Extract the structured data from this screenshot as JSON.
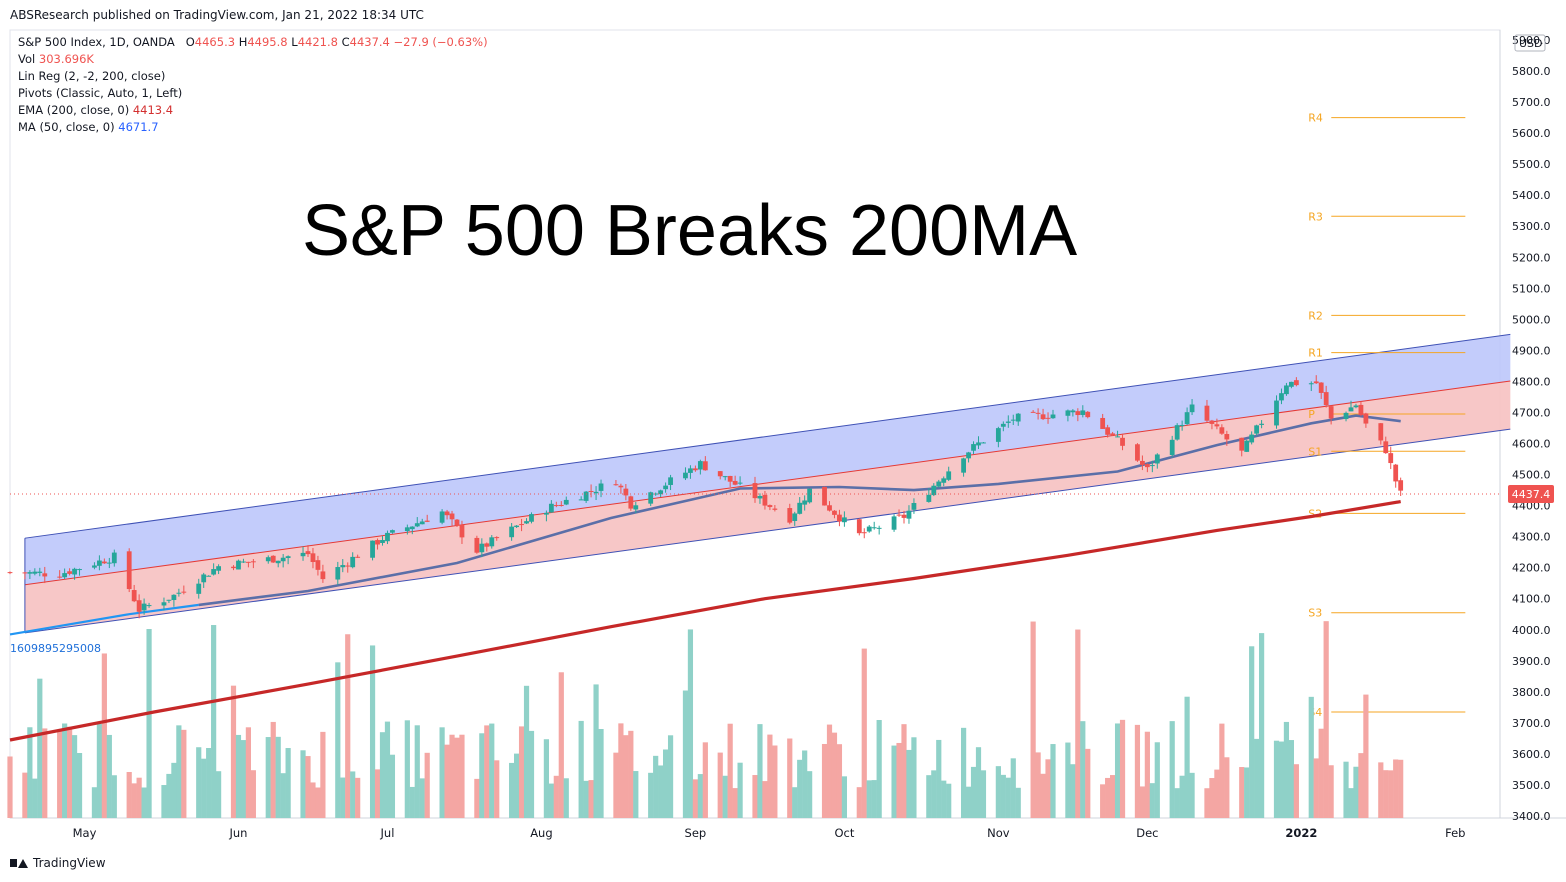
{
  "header": {
    "published": "ABSResearch published on TradingView.com, Jan 21, 2022 18:34 UTC"
  },
  "legend": {
    "symbol": "S&P 500 Index, 1D, OANDA",
    "ohlc": {
      "o_label": "O",
      "o": "4465.3",
      "h_label": "H",
      "h": "4495.8",
      "l_label": "L",
      "l": "4421.8",
      "c_label": "C",
      "c": "4437.4",
      "chg": "−27.9 (−0.63%)"
    },
    "vol_label": "Vol",
    "vol": "303.696K",
    "linreg": "Lin Reg (2, -2, 200, close)",
    "pivots": "Pivots (Classic, Auto, 1, Left)",
    "ema_label": "EMA (200, close, 0)",
    "ema": "4413.4",
    "ma_label": "MA (50, close, 0)",
    "ma": "4671.7"
  },
  "overlay_title": "S&P 500 Breaks 200MA",
  "left_edge_value": "1609895295008",
  "footer": {
    "brand": "TradingView"
  },
  "colors": {
    "up": "#26a69a",
    "down": "#ef5350",
    "vol_up": "#8fd1c8",
    "vol_down": "#f4a6a3",
    "ema": "#c62828",
    "ma": "#5b6fa8",
    "ma_early": "#2196f3",
    "channel_upper_fill": "#bcc6fb",
    "channel_lower_fill": "#f7c4c4",
    "pivot": "#f5a623",
    "price_badge": "#ef5350"
  },
  "chart_data": {
    "type": "candlestick",
    "currency": "USD",
    "y_ticks": [
      "3400.0",
      "3500.0",
      "3600.0",
      "3700.0",
      "3800.0",
      "3900.0",
      "4000.0",
      "4100.0",
      "4200.0",
      "4300.0",
      "4400.0",
      "4500.0",
      "4600.0",
      "4700.0",
      "4800.0",
      "4900.0",
      "5000.0",
      "5100.0",
      "5200.0",
      "5300.0",
      "5400.0",
      "5500.0",
      "5600.0",
      "5700.0",
      "5800.0",
      "5900.0"
    ],
    "ylim": [
      3400,
      5900
    ],
    "x_start": "2021-04-16",
    "x_end": "2022-02-10",
    "x_ticks": [
      {
        "label": "May",
        "date": "2021-05-01"
      },
      {
        "label": "Jun",
        "date": "2021-06-01"
      },
      {
        "label": "Jul",
        "date": "2021-07-01"
      },
      {
        "label": "Aug",
        "date": "2021-08-01"
      },
      {
        "label": "Sep",
        "date": "2021-09-01"
      },
      {
        "label": "Oct",
        "date": "2021-10-01"
      },
      {
        "label": "Nov",
        "date": "2021-11-01"
      },
      {
        "label": "Dec",
        "date": "2021-12-01"
      },
      {
        "label": "2022",
        "date": "2022-01-01"
      },
      {
        "label": "Feb",
        "date": "2022-02-01"
      }
    ],
    "last_price": "4437.4",
    "last_price_value": 4437.4,
    "pivots": [
      {
        "label": "R4",
        "value": 5650
      },
      {
        "label": "R3",
        "value": 5332
      },
      {
        "label": "R2",
        "value": 5013
      },
      {
        "label": "R1",
        "value": 4893
      },
      {
        "label": "P",
        "value": 4695
      },
      {
        "label": "S1",
        "value": 4575
      },
      {
        "label": "S2",
        "value": 4375
      },
      {
        "label": "S3",
        "value": 4055
      },
      {
        "label": "S4",
        "value": 3735
      }
    ],
    "pivot_start_date": "2022-01-03",
    "pivot_end_date": "2022-01-31",
    "lin_reg": {
      "start_date": "2021-04-19",
      "end_date": "2022-01-31",
      "upper": [
        4295,
        4925
      ],
      "mid": [
        4145,
        4775
      ],
      "lower": [
        3990,
        4620
      ]
    },
    "ema200": [
      {
        "date": "2021-04-16",
        "v": 3645
      },
      {
        "date": "2021-05-15",
        "v": 3735
      },
      {
        "date": "2021-06-15",
        "v": 3825
      },
      {
        "date": "2021-07-15",
        "v": 3915
      },
      {
        "date": "2021-08-15",
        "v": 4010
      },
      {
        "date": "2021-09-15",
        "v": 4100
      },
      {
        "date": "2021-10-15",
        "v": 4165
      },
      {
        "date": "2021-11-15",
        "v": 4240
      },
      {
        "date": "2021-12-15",
        "v": 4320
      },
      {
        "date": "2022-01-03",
        "v": 4365
      },
      {
        "date": "2022-01-21",
        "v": 4413
      }
    ],
    "ma50": [
      {
        "date": "2021-04-16",
        "v": 3985
      },
      {
        "date": "2021-05-10",
        "v": 4050
      },
      {
        "date": "2021-05-24",
        "v": 4080
      },
      {
        "date": "2021-06-15",
        "v": 4125
      },
      {
        "date": "2021-07-15",
        "v": 4215
      },
      {
        "date": "2021-08-15",
        "v": 4360
      },
      {
        "date": "2021-09-10",
        "v": 4455
      },
      {
        "date": "2021-09-30",
        "v": 4460
      },
      {
        "date": "2021-10-15",
        "v": 4450
      },
      {
        "date": "2021-11-01",
        "v": 4470
      },
      {
        "date": "2021-11-25",
        "v": 4510
      },
      {
        "date": "2021-12-15",
        "v": 4595
      },
      {
        "date": "2022-01-03",
        "v": 4665
      },
      {
        "date": "2022-01-12",
        "v": 4690
      },
      {
        "date": "2022-01-21",
        "v": 4672
      }
    ],
    "close_anchors": [
      {
        "date": "2021-04-16",
        "v": 4185
      },
      {
        "date": "2021-04-26",
        "v": 4180
      },
      {
        "date": "2021-05-07",
        "v": 4235
      },
      {
        "date": "2021-05-12",
        "v": 4065
      },
      {
        "date": "2021-05-19",
        "v": 4110
      },
      {
        "date": "2021-05-28",
        "v": 4205
      },
      {
        "date": "2021-06-15",
        "v": 4245
      },
      {
        "date": "2021-06-18",
        "v": 4165
      },
      {
        "date": "2021-06-30",
        "v": 4295
      },
      {
        "date": "2021-07-12",
        "v": 4380
      },
      {
        "date": "2021-07-19",
        "v": 4255
      },
      {
        "date": "2021-08-02",
        "v": 4390
      },
      {
        "date": "2021-08-16",
        "v": 4480
      },
      {
        "date": "2021-08-19",
        "v": 4405
      },
      {
        "date": "2021-09-02",
        "v": 4535
      },
      {
        "date": "2021-09-10",
        "v": 4460
      },
      {
        "date": "2021-09-20",
        "v": 4360
      },
      {
        "date": "2021-09-24",
        "v": 4450
      },
      {
        "date": "2021-10-04",
        "v": 4305
      },
      {
        "date": "2021-10-13",
        "v": 4365
      },
      {
        "date": "2021-10-25",
        "v": 4565
      },
      {
        "date": "2021-11-04",
        "v": 4680
      },
      {
        "date": "2021-11-18",
        "v": 4705
      },
      {
        "date": "2021-11-26",
        "v": 4595
      },
      {
        "date": "2021-12-01",
        "v": 4515
      },
      {
        "date": "2021-12-10",
        "v": 4715
      },
      {
        "date": "2021-12-20",
        "v": 4570
      },
      {
        "date": "2021-12-29",
        "v": 4795
      },
      {
        "date": "2022-01-04",
        "v": 4795
      },
      {
        "date": "2022-01-07",
        "v": 4680
      },
      {
        "date": "2022-01-12",
        "v": 4725
      },
      {
        "date": "2022-01-14",
        "v": 4660
      },
      {
        "date": "2022-01-18",
        "v": 4580
      },
      {
        "date": "2022-01-20",
        "v": 4480
      },
      {
        "date": "2022-01-21",
        "v": 4437
      }
    ]
  }
}
